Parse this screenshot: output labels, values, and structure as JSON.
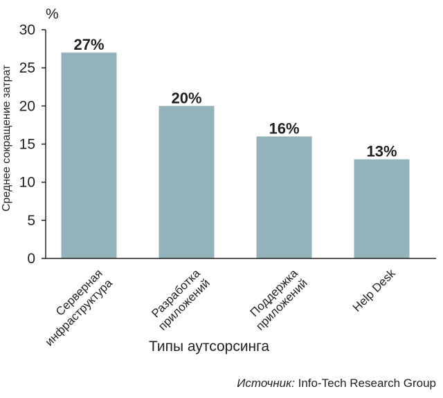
{
  "chart_data": {
    "type": "bar",
    "categories": [
      [
        "Серверная",
        "инфраструктура"
      ],
      [
        "Разработка",
        "приложений"
      ],
      [
        "Поддержка",
        "приложений"
      ],
      [
        "Help Desk"
      ]
    ],
    "values": [
      27,
      20,
      16,
      13
    ],
    "value_labels": [
      "27%",
      "20%",
      "16%",
      "13%"
    ],
    "yticks": [
      0,
      5,
      10,
      15,
      20,
      25,
      30
    ],
    "ylim": [
      0,
      30
    ],
    "y_unit": "%",
    "ylabel": "Среднее сокращение затрат",
    "xlabel": "Типы аутсорсинга",
    "grid": false,
    "bar_color": "#94b2b9",
    "axis_color": "#231f20"
  },
  "source": {
    "label": "Источник:",
    "text": " Info-Tech Research Group"
  }
}
